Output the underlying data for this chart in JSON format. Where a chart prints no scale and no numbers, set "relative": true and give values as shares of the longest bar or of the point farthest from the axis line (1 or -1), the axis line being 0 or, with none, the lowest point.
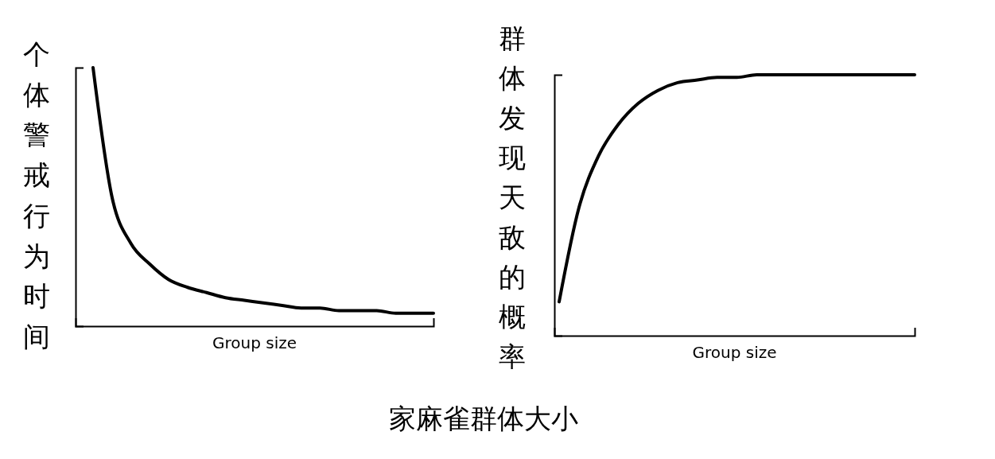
{
  "chart_data": [
    {
      "type": "line",
      "relative": true,
      "ylabel": "个体警戒行为时间",
      "xlabel": "Group size",
      "annotations": [
        "家麻雀群体大小"
      ],
      "categories": [
        null,
        null,
        null,
        null,
        null,
        null,
        null,
        null,
        null,
        null,
        null,
        null,
        null,
        null,
        null,
        null,
        null,
        null,
        null
      ],
      "series": [
        {
          "color": "#000000",
          "values": [
            1.0,
            0.5,
            0.32,
            0.24,
            0.18,
            0.15,
            0.13,
            0.11,
            0.1,
            0.09,
            0.08,
            0.07,
            0.07,
            0.06,
            0.06,
            0.06,
            0.05,
            0.05,
            0.05
          ]
        }
      ]
    },
    {
      "type": "line",
      "relative": true,
      "ylabel": "群体发现天敌的概率",
      "xlabel": "Group size",
      "categories": [
        null,
        null,
        null,
        null,
        null,
        null,
        null,
        null,
        null,
        null,
        null,
        null,
        null,
        null,
        null,
        null,
        null,
        null,
        null
      ],
      "series": [
        {
          "color": "#000000",
          "values": [
            0.13,
            0.49,
            0.69,
            0.81,
            0.89,
            0.94,
            0.97,
            0.98,
            0.99,
            0.99,
            1.0,
            1.0,
            1.0,
            1.0,
            1.0,
            1.0,
            1.0,
            1.0,
            1.0
          ]
        }
      ]
    }
  ]
}
